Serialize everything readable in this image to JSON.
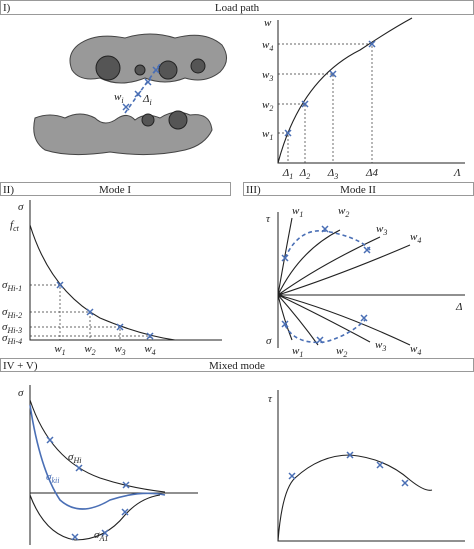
{
  "panels": [
    {
      "number": "I)",
      "title": "Load path"
    },
    {
      "number": "II)",
      "title": "Mode I"
    },
    {
      "number": "III)",
      "title": "Mode II"
    },
    {
      "number": "IV + V)",
      "title": "Mixed mode"
    }
  ],
  "load_path": {
    "sketch_labels": [
      {
        "main": "w",
        "sub": "i"
      },
      {
        "main": "Δ",
        "sub": "i"
      }
    ],
    "y_axis": "w",
    "x_axis": "Λ",
    "w_labels": [
      {
        "main": "w",
        "sub": "1"
      },
      {
        "main": "w",
        "sub": "2"
      },
      {
        "main": "w",
        "sub": "3"
      },
      {
        "main": "w",
        "sub": "4"
      }
    ],
    "delta_labels": [
      {
        "main": "Δ",
        "sub": "1"
      },
      {
        "main": "Δ",
        "sub": "2"
      },
      {
        "main": "Δ",
        "sub": "3"
      },
      {
        "main": "Δ4"
      }
    ]
  },
  "mode_1": {
    "y_axis": "σ",
    "strength": {
      "main": "f",
      "sub": "ct"
    },
    "stress_labels": [
      {
        "main": "σ",
        "sub": "Hi-1"
      },
      {
        "main": "σ",
        "sub": "Hi-2"
      },
      {
        "main": "σ",
        "sub": "Hi-3"
      },
      {
        "main": "σ",
        "sub": "Hi-4"
      }
    ],
    "w_labels": [
      {
        "main": "w",
        "sub": "1"
      },
      {
        "main": "w",
        "sub": "2"
      },
      {
        "main": "w",
        "sub": "3"
      },
      {
        "main": "w",
        "sub": "4"
      }
    ]
  },
  "mode_2": {
    "y_axis_top": "τ",
    "x_axis": "Δ",
    "y_axis_bottom": "σ",
    "upper_w_labels": [
      {
        "main": "w",
        "sub": "1"
      },
      {
        "main": "w",
        "sub": "2"
      },
      {
        "main": "w",
        "sub": "3"
      },
      {
        "main": "w",
        "sub": "4"
      }
    ],
    "lower_w_labels": [
      {
        "main": "w",
        "sub": "1"
      },
      {
        "main": "w",
        "sub": "2"
      },
      {
        "main": "w",
        "sub": "3"
      },
      {
        "main": "w",
        "sub": "4"
      }
    ]
  },
  "mixed_mode": {
    "left_y_axis": "σ",
    "curve_labels": [
      {
        "main": "σ",
        "sub": "Hi"
      },
      {
        "main": "σ",
        "sub": "kii"
      },
      {
        "main": "σ",
        "sub": "A1"
      }
    ],
    "right_y_axis": "τ"
  }
}
